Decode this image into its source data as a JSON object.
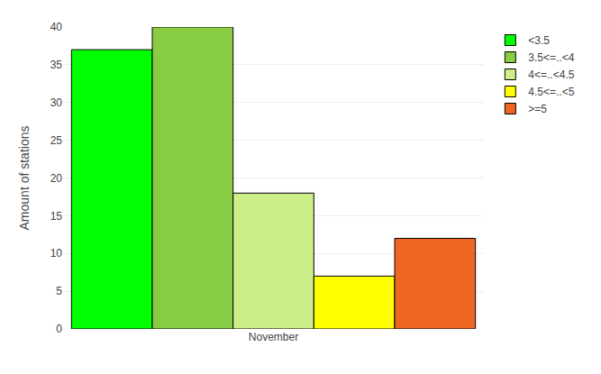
{
  "chart_data": {
    "type": "bar",
    "categories": [
      "November"
    ],
    "series": [
      {
        "name": "<3.5",
        "color": "#00ff00",
        "values": [
          37
        ]
      },
      {
        "name": "3.5<=..<4",
        "color": "#88cc44",
        "values": [
          40
        ]
      },
      {
        "name": "4<=..<4.5",
        "color": "#ccee88",
        "values": [
          18
        ]
      },
      {
        "name": "4.5<=..<5",
        "color": "#ffff00",
        "values": [
          7
        ]
      },
      {
        "name": ">=5",
        "color": "#ee6622",
        "values": [
          12
        ]
      }
    ],
    "y_label": "Amount of stations",
    "ylim": [
      0,
      40
    ],
    "yticks": [
      0,
      5,
      10,
      15,
      20,
      25,
      30,
      35,
      40
    ],
    "grid": true,
    "legend": "upper right"
  }
}
